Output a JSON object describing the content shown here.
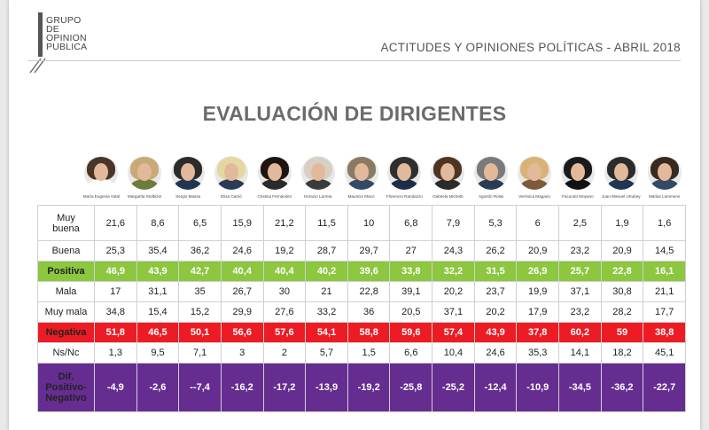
{
  "header": {
    "logo_lines": [
      "GRUPO",
      "DE",
      "OPINION",
      "PUBLICA"
    ],
    "title": "ACTITUDES Y OPINIONES POLÍTICAS - ABRIL 2018"
  },
  "main_title": "EVALUACIÓN DE DIRIGENTES",
  "colors": {
    "positive": "#8dc63f",
    "negative": "#ed1c24",
    "difference": "#662d91"
  },
  "people": [
    {
      "name": "María Eugenia Vidal",
      "hair": "#4a3526",
      "shirt": "#ffffff"
    },
    {
      "name": "Margarita Stolbizer",
      "hair": "#c9a977",
      "shirt": "#6f7b3a"
    },
    {
      "name": "Sergio Massa",
      "hair": "#2b2b2b",
      "shirt": "#1f3550"
    },
    {
      "name": "Elisa Carrió",
      "hair": "#e6d7a2",
      "shirt": "#2b3b55"
    },
    {
      "name": "Cristina Fernández",
      "hair": "#1e1410",
      "shirt": "#2a2a2a"
    },
    {
      "name": "Horacio Larreta",
      "hair": "#d8d0c4",
      "shirt": "#3b3b3b"
    },
    {
      "name": "Mauricio Macri",
      "hair": "#8a7a62",
      "shirt": "#324a66"
    },
    {
      "name": "Florencio Randazzo",
      "hair": "#2f2f2f",
      "shirt": "#1d2d45"
    },
    {
      "name": "Gabriela Michetti",
      "hair": "#4f3424",
      "shirt": "#2a2a2a"
    },
    {
      "name": "Agustín Rossi",
      "hair": "#7a7a7a",
      "shirt": "#2b3b55"
    },
    {
      "name": "Verónica Magario",
      "hair": "#d9b275",
      "shirt": "#7a5a3a"
    },
    {
      "name": "Facundo Moyano",
      "hair": "#1a1a1a",
      "shirt": "#111111"
    },
    {
      "name": "Juan Manuel Urtubey",
      "hair": "#2b2b2b",
      "shirt": "#1f3550"
    },
    {
      "name": "Matías Lammens",
      "hair": "#3a2a1e",
      "shirt": "#324a66"
    }
  ],
  "rows": [
    {
      "label": "Muy buena",
      "values": [
        "21,6",
        "8,6",
        "6,5",
        "15,9",
        "21,2",
        "11,5",
        "10",
        "6,8",
        "7,9",
        "5,3",
        "6",
        "2,5",
        "1,9",
        "1,6"
      ]
    },
    {
      "label": "Buena",
      "values": [
        "25,3",
        "35,4",
        "36,2",
        "24,6",
        "19,2",
        "28,7",
        "29,7",
        "27",
        "24,3",
        "26,2",
        "20,9",
        "23,2",
        "20,9",
        "14,5"
      ]
    },
    {
      "label": "Positiva",
      "values": [
        "46,9",
        "43,9",
        "42,7",
        "40,4",
        "40,4",
        "40,2",
        "39,6",
        "33,8",
        "32,2",
        "31,5",
        "26,9",
        "25,7",
        "22,8",
        "16,1"
      ]
    },
    {
      "label": "Mala",
      "values": [
        "17",
        "31,1",
        "35",
        "26,7",
        "30",
        "21",
        "22,8",
        "39,1",
        "20,2",
        "23,7",
        "19,9",
        "37,1",
        "30,8",
        "21,1"
      ]
    },
    {
      "label": "Muy mala",
      "values": [
        "34,8",
        "15,4",
        "15,2",
        "29,9",
        "27,6",
        "33,2",
        "36",
        "20,5",
        "37,1",
        "20,2",
        "17,9",
        "23,2",
        "28,2",
        "17,7"
      ]
    },
    {
      "label": "Negativa",
      "values": [
        "51,8",
        "46,5",
        "50,1",
        "56,6",
        "57,6",
        "54,1",
        "58,8",
        "59,6",
        "57,4",
        "43,9",
        "37,8",
        "60,2",
        "59",
        "38,8"
      ]
    },
    {
      "label": "Ns/Nc",
      "values": [
        "1,3",
        "9,5",
        "7,1",
        "3",
        "2",
        "5,7",
        "1,5",
        "6,6",
        "10,4",
        "24,6",
        "35,3",
        "14,1",
        "18,2",
        "45,1"
      ]
    },
    {
      "label": "Dif. Positivo-Negativo",
      "values": [
        "-4,9",
        "-2,6",
        "--7,4",
        "-16,2",
        "-17,2",
        "-13,9",
        "-19,2",
        "-25,8",
        "-25,2",
        "-12,4",
        "-10,9",
        "-34,5",
        "-36,2",
        "-22,7"
      ]
    }
  ]
}
